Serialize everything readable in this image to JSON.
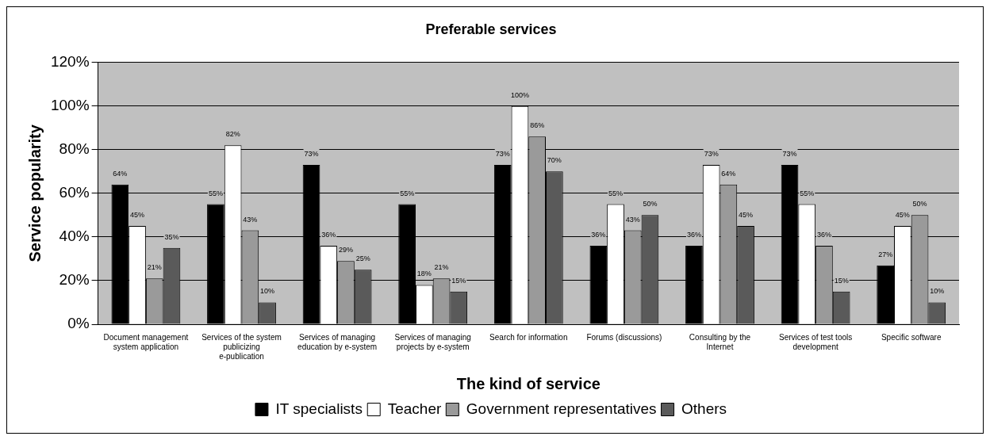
{
  "chart_data": {
    "type": "bar",
    "title": "Preferable services",
    "xlabel": "The kind of service",
    "ylabel": "Service popularity",
    "categories": [
      "Document management system application",
      "Services of the system publicizing e-publication",
      "Services of managing education by e-system",
      "Services of managing projects by e-system",
      "Search for information",
      "Forums (discussions)",
      "Consulting by the Internet",
      "Services of test tools development",
      "Specific software"
    ],
    "series": [
      {
        "name": "IT specialists",
        "color": "#000000",
        "values": [
          64,
          55,
          73,
          55,
          73,
          36,
          36,
          73,
          27
        ],
        "value_labels": [
          "64%",
          "55%",
          "73%",
          "55%",
          "73%",
          "36%",
          "36%",
          "73%",
          "27%"
        ]
      },
      {
        "name": "Teacher",
        "color": "#ffffff",
        "values": [
          45,
          82,
          36,
          18,
          100,
          55,
          73,
          55,
          45
        ],
        "value_labels": [
          "45%",
          "82%",
          "36%",
          "18%",
          "100%",
          "55%",
          "73%",
          "55%",
          "45%"
        ]
      },
      {
        "name": "Government representatives",
        "color": "#9a9a9a",
        "values": [
          21,
          43,
          29,
          21,
          86,
          43,
          64,
          36,
          50
        ],
        "value_labels": [
          "21%",
          "43%",
          "29%",
          "21%",
          "86%",
          "43%",
          "64%",
          "36%",
          "50%"
        ]
      },
      {
        "name": "Others",
        "color": "#5a5a5a",
        "values": [
          35,
          10,
          25,
          15,
          70,
          50,
          45,
          15,
          10
        ],
        "value_labels": [
          "35%",
          "10%",
          "25%",
          "15%",
          "70%",
          "50%",
          "45%",
          "15%",
          "10%"
        ]
      }
    ],
    "ylim": [
      0,
      120
    ],
    "yticks": [
      {
        "value": 0,
        "label": "0%"
      },
      {
        "value": 20,
        "label": "20%"
      },
      {
        "value": 40,
        "label": "40%"
      },
      {
        "value": 60,
        "label": "60%"
      },
      {
        "value": 80,
        "label": "80%"
      },
      {
        "value": 100,
        "label": "100%"
      },
      {
        "value": 120,
        "label": "120%"
      }
    ],
    "grid": "y",
    "legend": "bottom"
  }
}
